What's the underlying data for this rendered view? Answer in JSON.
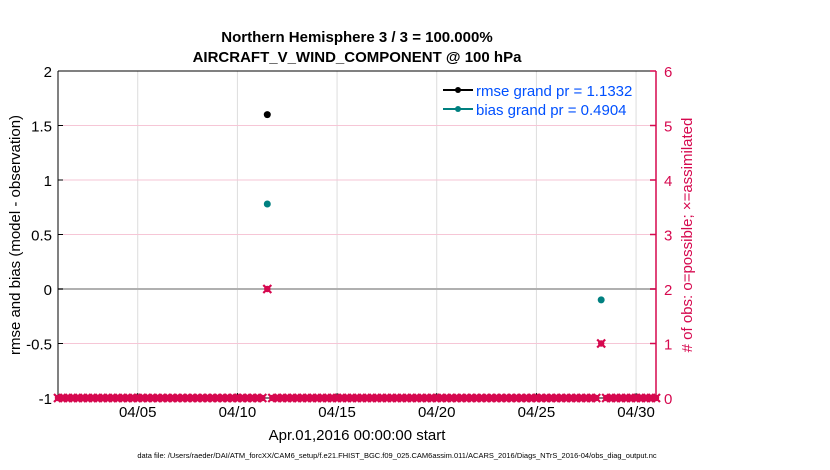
{
  "chart_data": {
    "type": "scatter",
    "title": [
      "Northern Hemisphere 3 / 3 = 100.000%",
      "AIRCRAFT_V_WIND_COMPONENT @ 100 hPa"
    ],
    "xlabel": "Apr.01,2016 00:00:00 start",
    "ylabel": "rmse and bias (model - observation)",
    "y2label": "# of obs: o=possible; ×=assimilated",
    "xlim_days": [
      0,
      30
    ],
    "ylim": [
      -1,
      2
    ],
    "y2lim": [
      0,
      6
    ],
    "x_ticks": [
      {
        "day": 4,
        "label": "04/05"
      },
      {
        "day": 9,
        "label": "04/10"
      },
      {
        "day": 14,
        "label": "04/15"
      },
      {
        "day": 19,
        "label": "04/20"
      },
      {
        "day": 24,
        "label": "04/25"
      },
      {
        "day": 29,
        "label": "04/30"
      }
    ],
    "y_ticks": [
      {
        "v": -1,
        "label": "-1"
      },
      {
        "v": -0.5,
        "label": "-0.5"
      },
      {
        "v": 0,
        "label": "0"
      },
      {
        "v": 0.5,
        "label": "0.5"
      },
      {
        "v": 1,
        "label": "1"
      },
      {
        "v": 1.5,
        "label": "1.5"
      },
      {
        "v": 2,
        "label": "2"
      }
    ],
    "y2_ticks": [
      {
        "v": 0,
        "label": "0"
      },
      {
        "v": 1,
        "label": "1"
      },
      {
        "v": 2,
        "label": "2"
      },
      {
        "v": 3,
        "label": "3"
      },
      {
        "v": 4,
        "label": "4"
      },
      {
        "v": 5,
        "label": "5"
      },
      {
        "v": 6,
        "label": "6"
      }
    ],
    "legend": {
      "placement": "top-right",
      "entries": [
        {
          "label": "rmse grand pr = 1.1332",
          "color": "#000000"
        },
        {
          "label": "bias grand pr = 0.4904",
          "color": "#008080"
        }
      ]
    },
    "series": [
      {
        "name": "rmse",
        "color": "#000000",
        "points": [
          {
            "day": 10.5,
            "value": 1.6
          }
        ]
      },
      {
        "name": "bias",
        "color": "#008080",
        "points": [
          {
            "day": 10.5,
            "value": 0.78
          },
          {
            "day": 27.25,
            "value": -0.1
          }
        ]
      },
      {
        "name": "obs count",
        "axis": "right",
        "color": "#d6094f",
        "time_step_days": 0.25,
        "start_day": 0,
        "nonzero": [
          {
            "day": 10.5,
            "value": 2
          },
          {
            "day": 27.25,
            "value": 1
          }
        ],
        "default_value": 0
      }
    ],
    "grid": true
  },
  "footer": "data file: /Users/raeder/DAI/ATM_forcXX/CAM6_setup/f.e21.FHIST_BGC.f09_025.CAM6assim.011/ACARS_2016/Diags_NTrS_2016-04/obs_diag_output.nc",
  "colors": {
    "right_axis": "#d6094f",
    "legend_text": "#0050ff"
  }
}
